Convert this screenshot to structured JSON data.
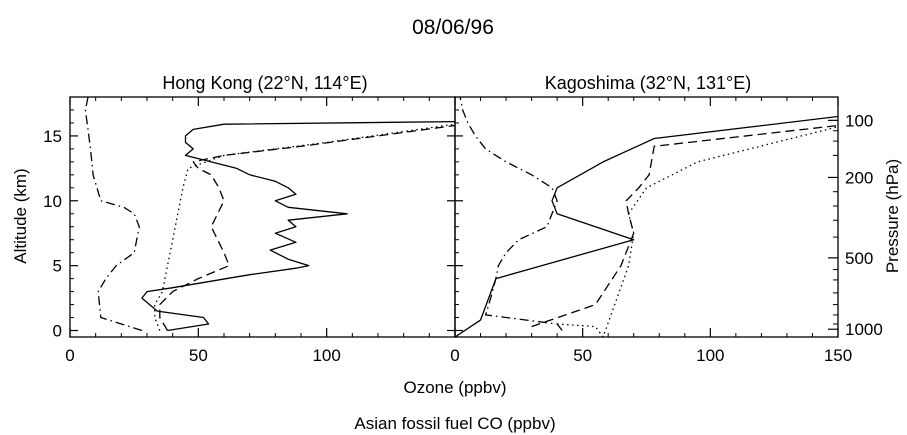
{
  "figure": {
    "title": "08/06/96",
    "xlabel_top": "Ozone (ppbv)",
    "xlabel_bottom": "Asian fossil fuel CO (ppbv)",
    "ylabel_left": "Altitude (km)",
    "ylabel_right": "Pressure (hPa)",
    "pressure_ticks": [
      {
        "label": "100",
        "alt_km": 16.2
      },
      {
        "label": "200",
        "alt_km": 11.8
      },
      {
        "label": "500",
        "alt_km": 5.6
      },
      {
        "label": "1000",
        "alt_km": 0.1
      }
    ],
    "colors": {
      "line": "#000000",
      "background": "#ffffff"
    }
  },
  "chart_data": [
    {
      "type": "line",
      "title": "Hong Kong (22°N, 114°E)",
      "xlim": [
        0,
        150
      ],
      "ylim": [
        -0.5,
        18
      ],
      "xticks": [
        0,
        50,
        100
      ],
      "yticks": [
        0,
        5,
        10,
        15
      ],
      "series": [
        {
          "style": "solid",
          "points": [
            [
              38,
              0
            ],
            [
              54,
              0.5
            ],
            [
              52,
              1
            ],
            [
              34,
              1.5
            ],
            [
              28,
              2.5
            ],
            [
              30,
              3
            ],
            [
              40,
              3.3
            ],
            [
              55,
              3.8
            ],
            [
              70,
              4.3
            ],
            [
              88,
              4.8
            ],
            [
              93,
              5
            ],
            [
              85,
              5.5
            ],
            [
              78,
              6.2
            ],
            [
              88,
              6.8
            ],
            [
              80,
              7.5
            ],
            [
              88,
              8
            ],
            [
              85,
              8.5
            ],
            [
              108,
              9
            ],
            [
              85,
              9.5
            ],
            [
              80,
              10
            ],
            [
              88,
              10.5
            ],
            [
              85,
              11
            ],
            [
              80,
              11.5
            ],
            [
              70,
              12
            ],
            [
              65,
              12.5
            ],
            [
              55,
              13
            ],
            [
              45,
              13.5
            ],
            [
              48,
              14
            ],
            [
              45,
              14.5
            ],
            [
              45,
              15
            ],
            [
              48,
              15.5
            ],
            [
              60,
              15.9
            ],
            [
              150,
              16.1
            ]
          ]
        },
        {
          "style": "dashed",
          "points": [
            [
              38,
              0
            ],
            [
              35,
              1
            ],
            [
              35,
              2
            ],
            [
              40,
              3
            ],
            [
              50,
              4
            ],
            [
              62,
              5
            ],
            [
              60,
              6
            ],
            [
              55,
              8
            ],
            [
              60,
              10
            ],
            [
              58,
              11
            ],
            [
              55,
              12
            ],
            [
              50,
              12.5
            ],
            [
              48,
              13
            ],
            [
              60,
              13.5
            ],
            [
              90,
              14.2
            ],
            [
              120,
              15
            ],
            [
              150,
              15.8
            ]
          ]
        },
        {
          "style": "dotted",
          "points": [
            [
              35,
              0
            ],
            [
              33,
              1
            ],
            [
              33,
              2
            ],
            [
              36,
              3
            ],
            [
              38,
              5
            ],
            [
              40,
              7
            ],
            [
              42,
              9
            ],
            [
              44,
              11
            ],
            [
              46,
              12.5
            ],
            [
              60,
              13.5
            ],
            [
              100,
              14.5
            ],
            [
              150,
              15.9
            ]
          ]
        },
        {
          "style": "dash-dot",
          "points": [
            [
              28,
              0
            ],
            [
              12,
              1
            ],
            [
              11,
              3
            ],
            [
              14,
              4
            ],
            [
              18,
              5
            ],
            [
              25,
              6
            ],
            [
              26,
              7
            ],
            [
              27,
              8
            ],
            [
              25,
              9
            ],
            [
              21,
              9.5
            ],
            [
              12,
              10
            ],
            [
              9,
              12
            ],
            [
              8,
              14
            ],
            [
              7,
              15.5
            ],
            [
              6,
              17
            ],
            [
              7,
              18
            ]
          ]
        }
      ]
    },
    {
      "type": "line",
      "title": "Kagoshima (32°N, 131°E)",
      "xlim": [
        0,
        150
      ],
      "ylim": [
        -0.5,
        18
      ],
      "xticks": [
        0,
        50,
        100,
        150
      ],
      "yticks": [
        0,
        5,
        10,
        15
      ],
      "series": [
        {
          "style": "solid",
          "points": [
            [
              0,
              -0.5
            ],
            [
              10,
              0.8
            ],
            [
              16,
              4
            ],
            [
              70,
              7
            ],
            [
              40,
              9
            ],
            [
              38,
              10
            ],
            [
              40,
              11
            ],
            [
              58,
              13
            ],
            [
              78,
              14.8
            ],
            [
              150,
              16.5
            ]
          ]
        },
        {
          "style": "dashed",
          "points": [
            [
              30,
              0.3
            ],
            [
              55,
              2
            ],
            [
              65,
              5
            ],
            [
              70,
              7.5
            ],
            [
              68,
              9
            ],
            [
              67,
              10
            ],
            [
              72,
              11
            ],
            [
              76,
              12
            ],
            [
              78,
              14.2
            ],
            [
              150,
              15.8
            ]
          ]
        },
        {
          "style": "dotted",
          "points": [
            [
              40,
              0.5
            ],
            [
              55,
              0.3
            ],
            [
              58,
              -0.5
            ],
            [
              68,
              5
            ],
            [
              70,
              7.5
            ],
            [
              68,
              9
            ],
            [
              75,
              11
            ],
            [
              95,
              13
            ],
            [
              150,
              15.7
            ]
          ]
        },
        {
          "style": "dash-dot",
          "points": [
            [
              42,
              0
            ],
            [
              40,
              0.5
            ],
            [
              12,
              1.2
            ],
            [
              14,
              2.5
            ],
            [
              16,
              4
            ],
            [
              17,
              5
            ],
            [
              20,
              6
            ],
            [
              25,
              7
            ],
            [
              36,
              8
            ],
            [
              38,
              9
            ],
            [
              40,
              10
            ],
            [
              38,
              11
            ],
            [
              30,
              12
            ],
            [
              20,
              13
            ],
            [
              12,
              14
            ],
            [
              8,
              15
            ],
            [
              5,
              16
            ],
            [
              3,
              17
            ],
            [
              2,
              18
            ]
          ]
        }
      ]
    }
  ]
}
